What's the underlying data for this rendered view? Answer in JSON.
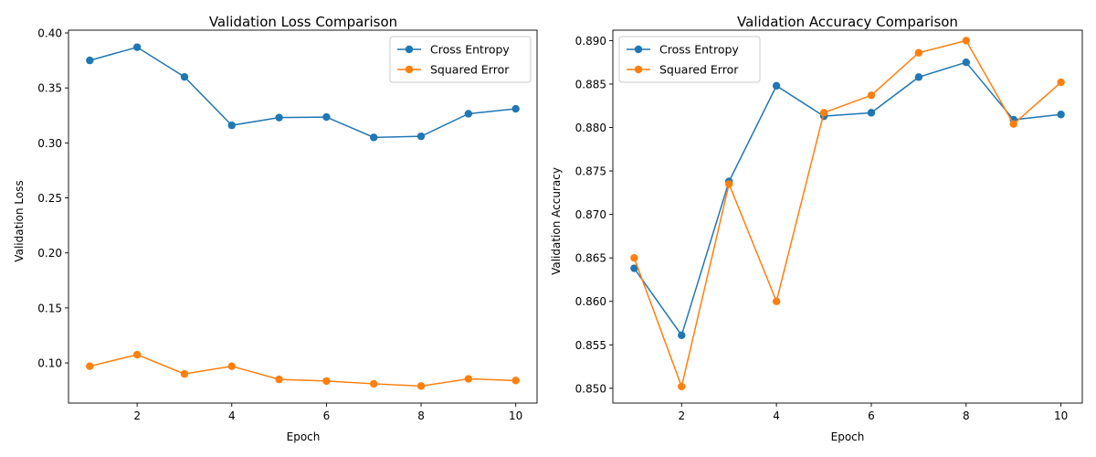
{
  "chart_data": [
    {
      "type": "line",
      "title": "Validation Loss Comparison",
      "xlabel": "Epoch",
      "ylabel": "Validation Loss",
      "x": [
        1,
        2,
        3,
        4,
        5,
        6,
        7,
        8,
        9,
        10
      ],
      "xlim": [
        0.55,
        10.45
      ],
      "ylim": [
        0.0635,
        0.4025
      ],
      "xticks": [
        2,
        4,
        6,
        8,
        10
      ],
      "yticks": [
        0.1,
        0.15,
        0.2,
        0.25,
        0.3,
        0.35,
        0.4
      ],
      "ytick_labels": [
        "0.10",
        "0.15",
        "0.20",
        "0.25",
        "0.30",
        "0.35",
        "0.40"
      ],
      "legend_position": "top-right",
      "grid": false,
      "series": [
        {
          "name": "Cross Entropy",
          "color": "#1f77b4",
          "values": [
            0.375,
            0.387,
            0.36,
            0.316,
            0.323,
            0.3235,
            0.305,
            0.306,
            0.3265,
            0.331
          ]
        },
        {
          "name": "Squared Error",
          "color": "#ff7f0e",
          "values": [
            0.097,
            0.1075,
            0.09,
            0.097,
            0.085,
            0.0835,
            0.081,
            0.079,
            0.0855,
            0.084
          ]
        }
      ]
    },
    {
      "type": "line",
      "title": "Validation Accuracy Comparison",
      "xlabel": "Epoch",
      "ylabel": "Validation Accuracy",
      "x": [
        1,
        2,
        3,
        4,
        5,
        6,
        7,
        8,
        9,
        10
      ],
      "xlim": [
        0.55,
        10.45
      ],
      "ylim": [
        0.8483,
        0.8912
      ],
      "xticks": [
        2,
        4,
        6,
        8,
        10
      ],
      "yticks": [
        0.85,
        0.855,
        0.86,
        0.865,
        0.87,
        0.875,
        0.88,
        0.885,
        0.89
      ],
      "ytick_labels": [
        "0.850",
        "0.855",
        "0.860",
        "0.865",
        "0.870",
        "0.875",
        "0.880",
        "0.885",
        "0.890"
      ],
      "legend_position": "top-left",
      "grid": false,
      "series": [
        {
          "name": "Cross Entropy",
          "color": "#1f77b4",
          "values": [
            0.8638,
            0.8561,
            0.8738,
            0.8848,
            0.8813,
            0.8817,
            0.8858,
            0.8875,
            0.8809,
            0.8815
          ]
        },
        {
          "name": "Squared Error",
          "color": "#ff7f0e",
          "values": [
            0.865,
            0.8502,
            0.8735,
            0.86,
            0.8817,
            0.8837,
            0.8886,
            0.89,
            0.8804,
            0.8852
          ]
        }
      ]
    }
  ]
}
